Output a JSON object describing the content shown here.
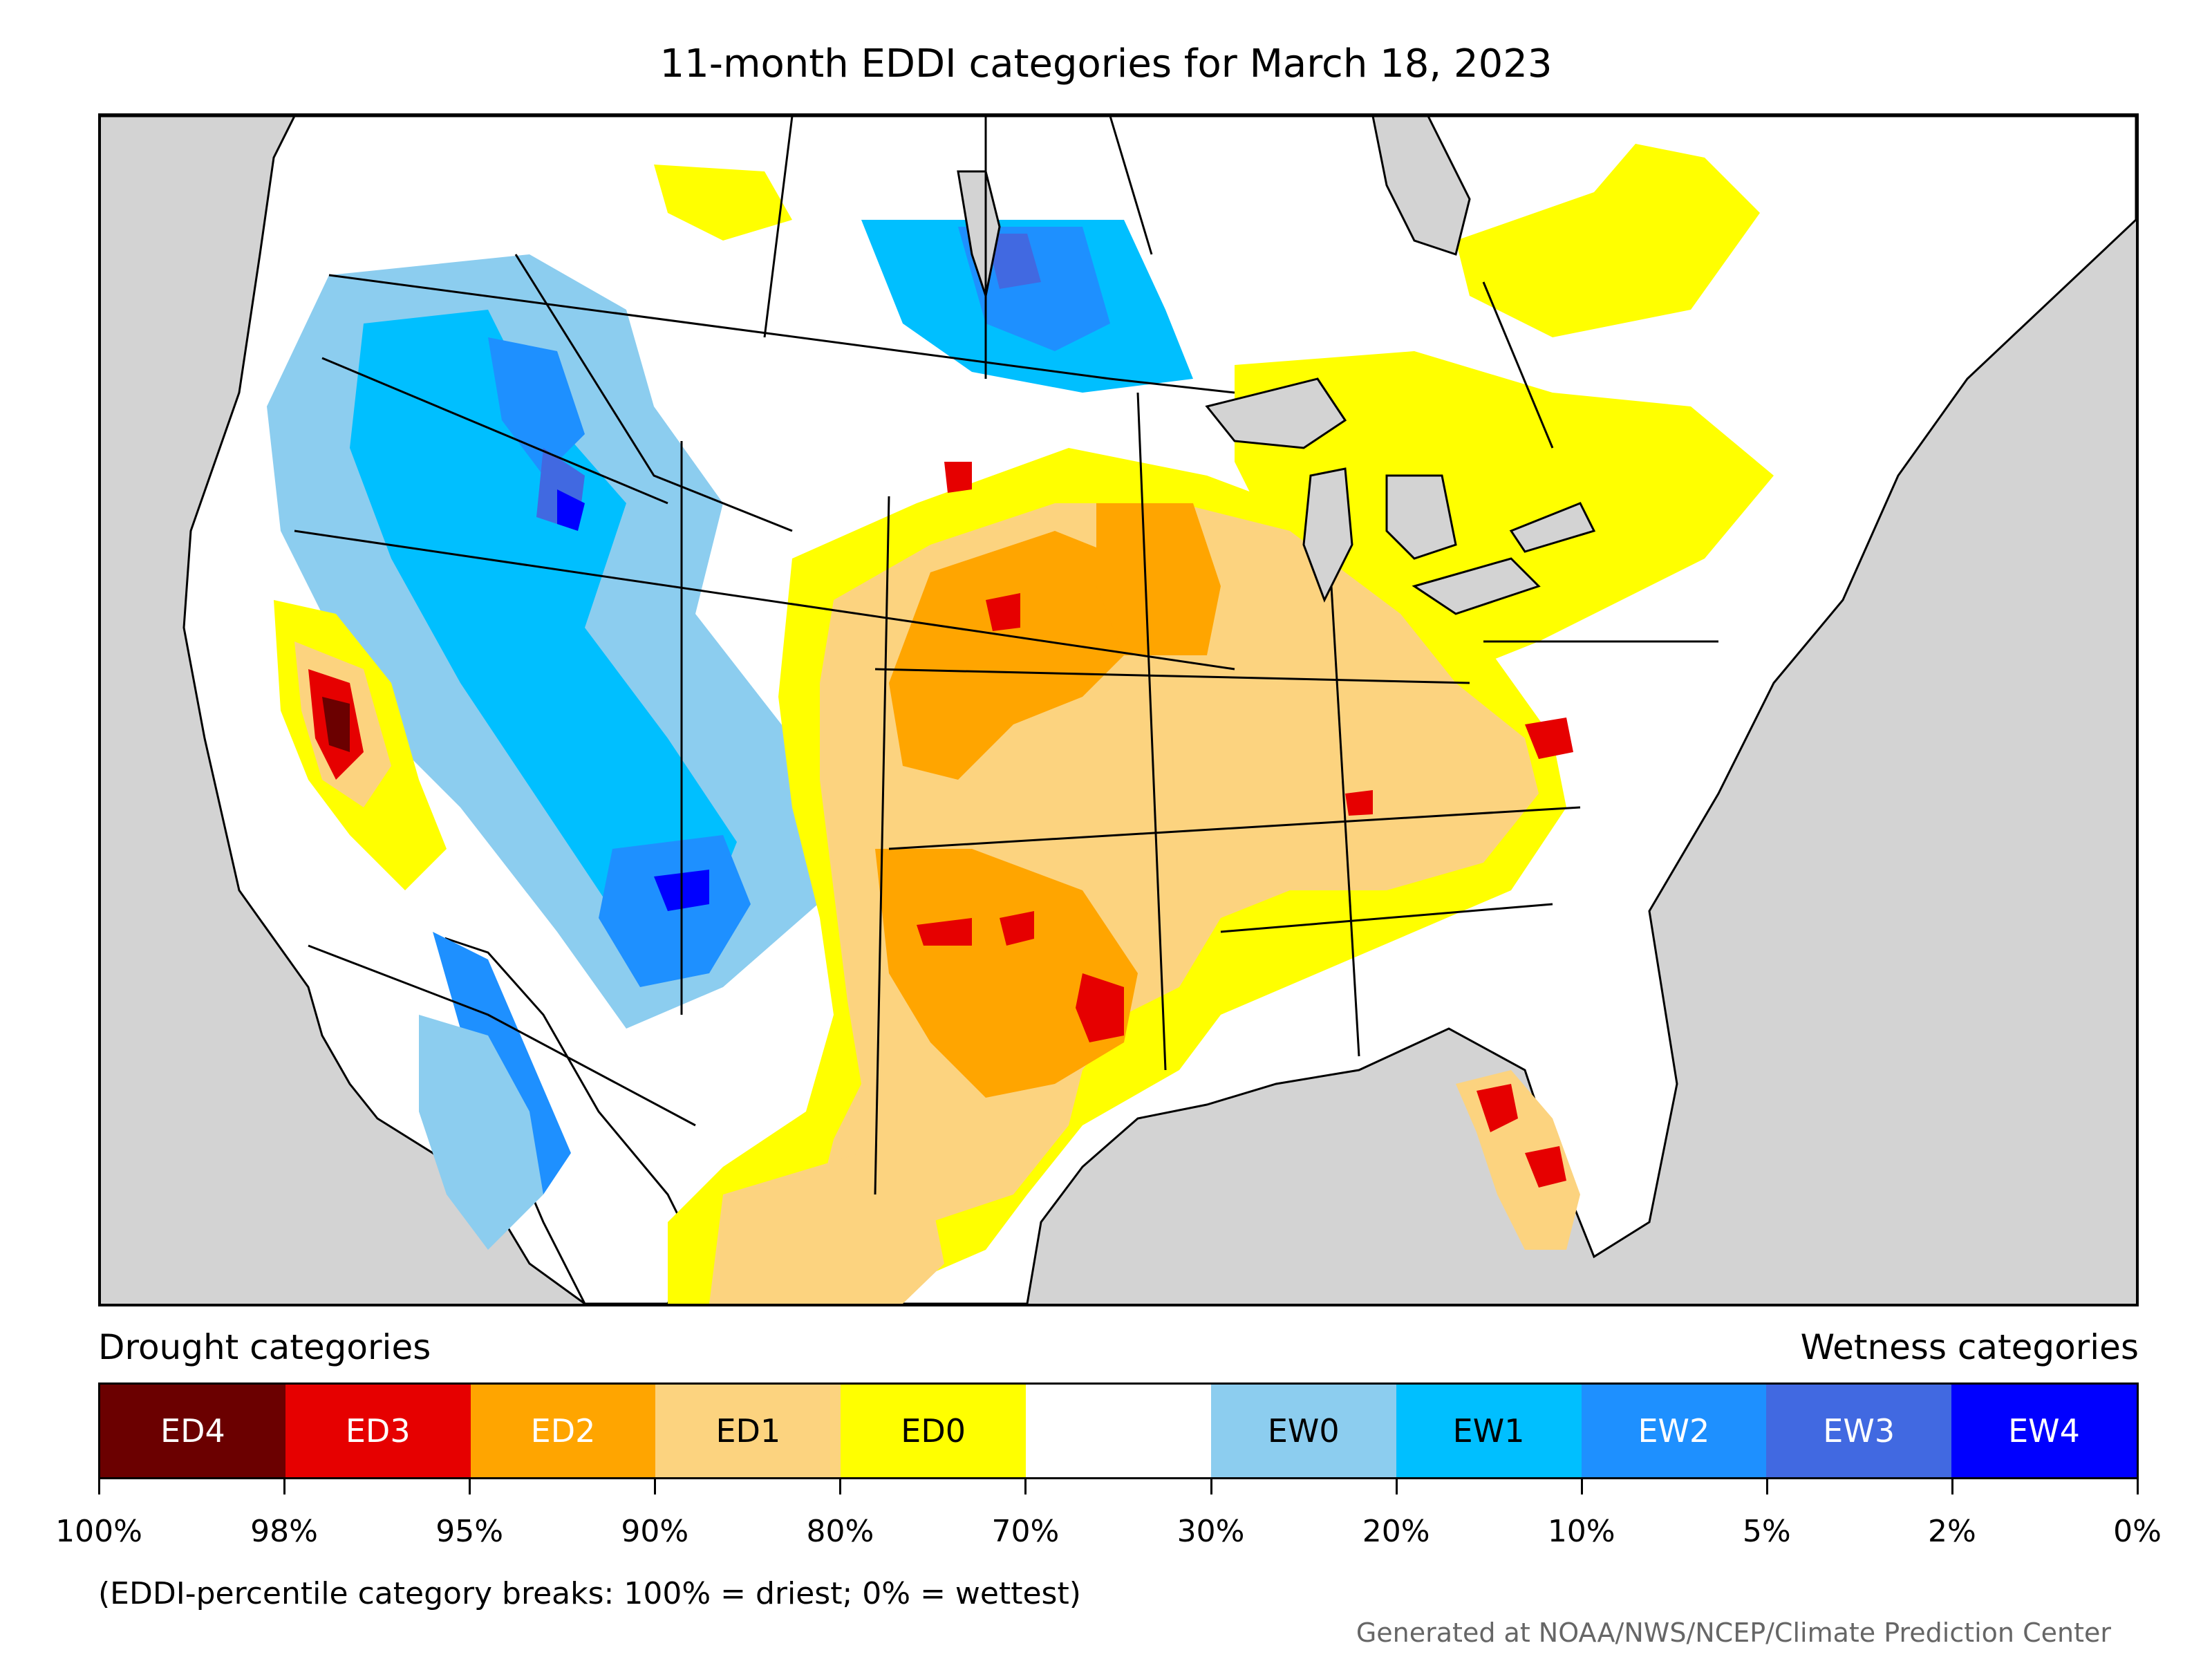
{
  "title": "11-month EDDI categories for March 18, 2023",
  "map": {
    "description_icon": "usa-eddi-map",
    "colors": {
      "ocean": "#d3d3d3",
      "land": "#ffffff",
      "border": "#000000"
    }
  },
  "legend": {
    "drought_heading": "Drought categories",
    "wetness_heading": "Wetness categories",
    "categories": [
      {
        "label": "ED4",
        "color": "#6b0000",
        "text_color": "#ffffff"
      },
      {
        "label": "ED3",
        "color": "#e60000",
        "text_color": "#ffffff"
      },
      {
        "label": "ED2",
        "color": "#ffa500",
        "text_color": "#ffffff"
      },
      {
        "label": "ED1",
        "color": "#fcd37f",
        "text_color": "#000000"
      },
      {
        "label": "ED0",
        "color": "#ffff00",
        "text_color": "#000000"
      },
      {
        "label": "",
        "color": "#ffffff",
        "text_color": "#000000"
      },
      {
        "label": "EW0",
        "color": "#8ccdef",
        "text_color": "#000000"
      },
      {
        "label": "EW1",
        "color": "#00bfff",
        "text_color": "#000000"
      },
      {
        "label": "EW2",
        "color": "#1e90ff",
        "text_color": "#ffffff"
      },
      {
        "label": "EW3",
        "color": "#4169e1",
        "text_color": "#ffffff"
      },
      {
        "label": "EW4",
        "color": "#0000ff",
        "text_color": "#ffffff"
      }
    ],
    "ticks": [
      "100%",
      "98%",
      "95%",
      "90%",
      "80%",
      "70%",
      "30%",
      "20%",
      "10%",
      "5%",
      "2%",
      "0%"
    ]
  },
  "note": "(EDDI-percentile category breaks: 100% = driest; 0% = wettest)",
  "credit": "Generated at NOAA/NWS/NCEP/Climate Prediction Center"
}
